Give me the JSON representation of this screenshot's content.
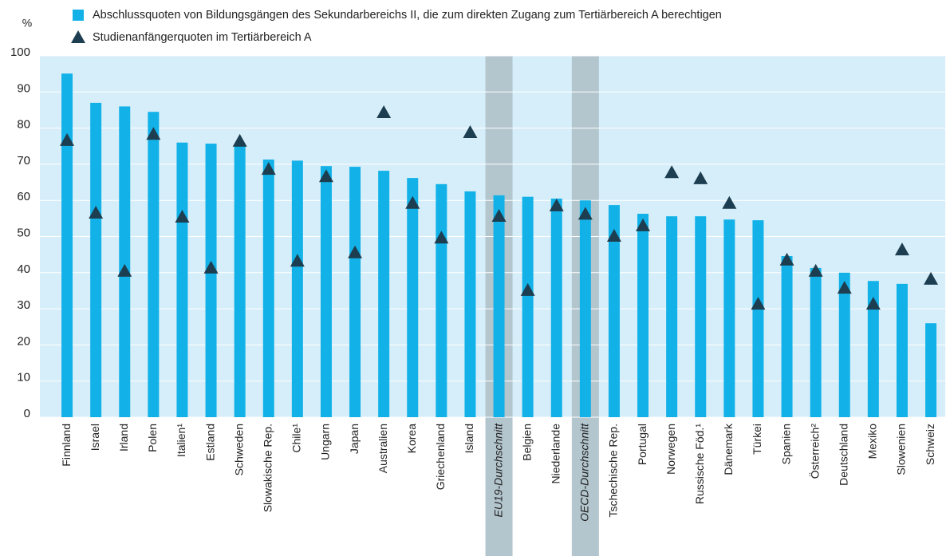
{
  "chart_data": {
    "type": "bar",
    "y_unit": "%",
    "categories": [
      "Finnland",
      "Israel",
      "Irland",
      "Polen",
      "Italien¹",
      "Estland",
      "Schweden",
      "Slowakische Rep.",
      "Chile¹",
      "Ungarn",
      "Japan",
      "Australien",
      "Korea",
      "Griechenland",
      "Island",
      "EU19-Durchschnitt",
      "Belgien",
      "Niederlande",
      "OECD-Durchschnitt",
      "Tschechische Rep.",
      "Portugal",
      "Norwegen",
      "Russische Föd.¹",
      "Dänemark",
      "Türkei",
      "Spanien",
      "Österreich²",
      "Deutschland",
      "Mexiko",
      "Slowenien",
      "Schweiz"
    ],
    "highlight": [
      15,
      18
    ],
    "series": [
      {
        "name": "Abschlussquoten von Bildungsgängen des Sekundarbereichs II, die zum direkten Zugang zum Tertiärbereich A berechtigen",
        "color": "#12b2e8",
        "marker": "bar",
        "values": [
          95.1,
          87,
          86,
          84.5,
          76,
          75.7,
          75,
          71.3,
          71,
          69.5,
          69.3,
          68.2,
          66.2,
          64.5,
          62.5,
          61.4,
          61,
          60.5,
          60,
          58.7,
          56.3,
          55.6,
          55.6,
          54.7,
          54.5,
          44.6,
          41.3,
          40,
          37.7,
          36.9,
          26
        ]
      },
      {
        "name": "Studienanfängerquoten im Tertiärbereich A",
        "color": "#1d3e50",
        "marker": "triangle",
        "values": [
          76.4,
          56.3,
          40.2,
          78.1,
          55.2,
          41.1,
          76.2,
          68.4,
          43,
          66.4,
          45.3,
          84.1,
          59,
          49.4,
          78.6,
          55.4,
          34.9,
          58.3,
          56,
          49.9,
          52.8,
          67.5,
          65.8,
          59,
          31.1,
          43.3,
          40.2,
          35.5,
          31.1,
          46.1,
          38
        ]
      }
    ],
    "ylim": [
      0,
      100
    ],
    "yticks": [
      0,
      10,
      20,
      30,
      40,
      50,
      60,
      70,
      80,
      90,
      100
    ],
    "grid": true,
    "background": "#d6eef9",
    "highlight_color": "#b3c5cd"
  }
}
